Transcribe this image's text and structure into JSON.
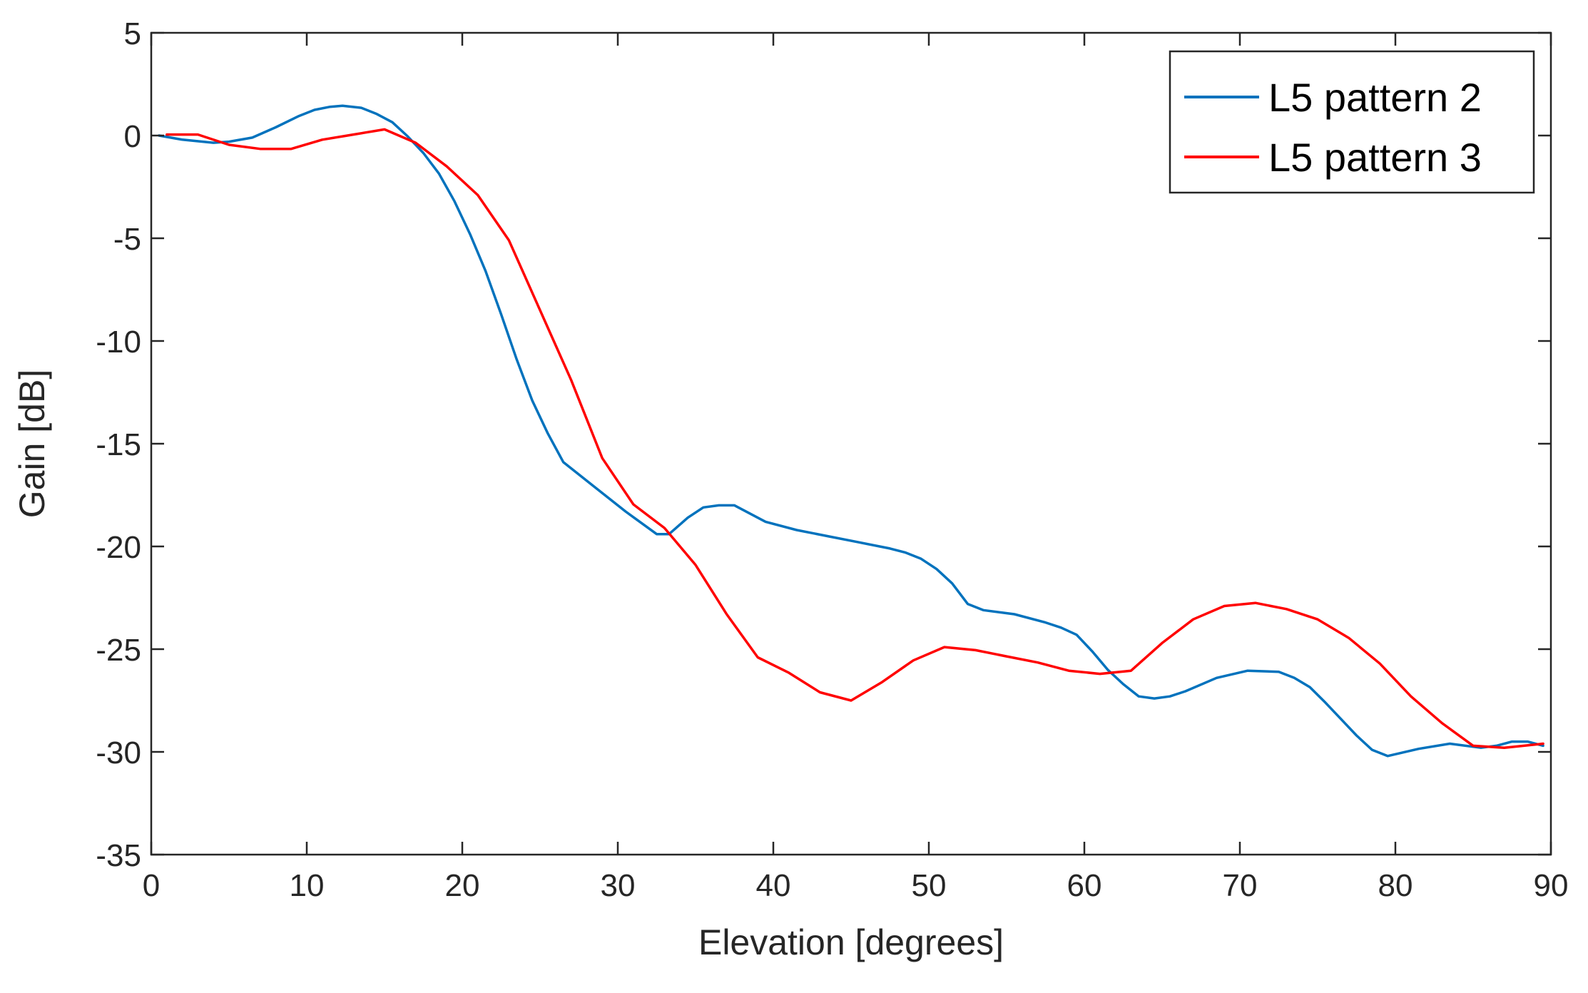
{
  "chart_data": {
    "type": "line",
    "title": "",
    "xlabel": "Elevation [degrees]",
    "ylabel": "Gain [dB]",
    "xlim": [
      0,
      90
    ],
    "ylim": [
      -35,
      5
    ],
    "xticks": [
      0,
      10,
      20,
      30,
      40,
      50,
      60,
      70,
      80,
      90
    ],
    "xtick_labels": [
      "0",
      "10",
      "20",
      "30",
      "40",
      "50",
      "60",
      "70",
      "80",
      "90"
    ],
    "yticks": [
      5,
      0,
      -5,
      -10,
      -15,
      -20,
      -25,
      -30,
      -35
    ],
    "ytick_labels": [
      "5",
      "0",
      "-5",
      "-10",
      "-15",
      "-20",
      "-25",
      "-30",
      "-35"
    ],
    "grid": false,
    "legend_position": "top-right",
    "series": [
      {
        "name": "L5 pattern 2",
        "color": "#0072BD",
        "x": [
          0.5,
          2,
          4,
          5,
          6.5,
          8,
          9.5,
          10.5,
          11.5,
          12.3,
          13.5,
          14.5,
          15.5,
          16.5,
          17.5,
          18.5,
          19.5,
          20.5,
          21.5,
          22.5,
          23.5,
          24.5,
          25.5,
          26.5,
          28.5,
          30.5,
          32.5,
          33.3,
          34.5,
          35.5,
          36.5,
          37.5,
          39.5,
          41.5,
          43.5,
          45.5,
          47.5,
          48.5,
          49.5,
          50.5,
          51.5,
          52.5,
          53.5,
          55.5,
          57.5,
          58.5,
          59.5,
          60.5,
          61.5,
          62.5,
          63.5,
          64.5,
          65.5,
          66.5,
          68.5,
          70.5,
          72.5,
          73.5,
          74.5,
          75.5,
          76.5,
          77.5,
          78.5,
          79.5,
          81.5,
          83.5,
          85.5,
          86.5,
          87.5,
          88.5,
          89.5
        ],
        "y": [
          0,
          -0.2,
          -0.35,
          -0.3,
          -0.1,
          0.4,
          0.95,
          1.25,
          1.4,
          1.45,
          1.35,
          1.05,
          0.65,
          -0.05,
          -0.85,
          -1.85,
          -3.2,
          -4.8,
          -6.6,
          -8.7,
          -10.9,
          -12.9,
          -14.5,
          -15.9,
          -17.1,
          -18.3,
          -19.4,
          -19.4,
          -18.6,
          -18.1,
          -18.0,
          -18.0,
          -18.8,
          -19.2,
          -19.5,
          -19.8,
          -20.1,
          -20.3,
          -20.6,
          -21.1,
          -21.8,
          -22.8,
          -23.1,
          -23.3,
          -23.7,
          -23.95,
          -24.3,
          -25.1,
          -26.0,
          -26.7,
          -27.3,
          -27.4,
          -27.3,
          -27.05,
          -26.4,
          -26.05,
          -26.1,
          -26.4,
          -26.85,
          -27.6,
          -28.4,
          -29.2,
          -29.9,
          -30.2,
          -29.85,
          -29.6,
          -29.8,
          -29.7,
          -29.5,
          -29.5,
          -29.7
        ]
      },
      {
        "name": "L5 pattern 3",
        "color": "#FF0000",
        "x": [
          1,
          3,
          5,
          7,
          9,
          11,
          13,
          15,
          17,
          19,
          21,
          23,
          25,
          27,
          29,
          31,
          33,
          35,
          37,
          39,
          41,
          43,
          45,
          47,
          49,
          51,
          53,
          55,
          57,
          59,
          61,
          63,
          65,
          67,
          69,
          71,
          73,
          75,
          77,
          79,
          81,
          83,
          85,
          87,
          89.5
        ],
        "y": [
          0.05,
          0.05,
          -0.45,
          -0.65,
          -0.65,
          -0.2,
          0.05,
          0.3,
          -0.35,
          -1.5,
          -2.9,
          -5.1,
          -8.5,
          -11.9,
          -15.7,
          -17.95,
          -19.1,
          -20.9,
          -23.3,
          -25.4,
          -26.15,
          -27.1,
          -27.5,
          -26.6,
          -25.55,
          -24.9,
          -25.05,
          -25.35,
          -25.65,
          -26.05,
          -26.2,
          -26.05,
          -24.7,
          -23.55,
          -22.9,
          -22.75,
          -23.05,
          -23.55,
          -24.45,
          -25.7,
          -27.3,
          -28.6,
          -29.7,
          -29.8,
          -29.6
        ]
      }
    ]
  }
}
